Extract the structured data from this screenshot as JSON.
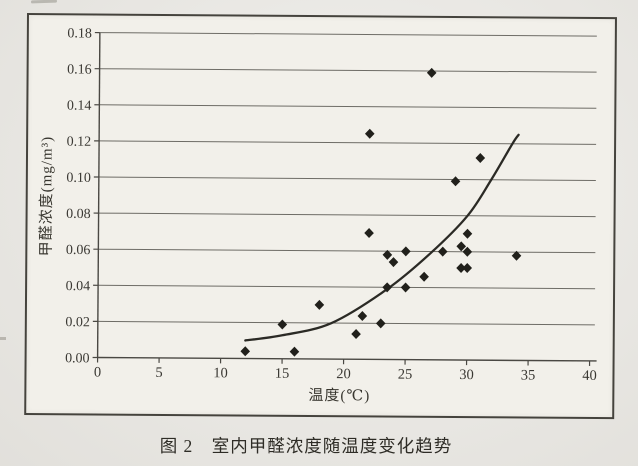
{
  "figure": {
    "caption": "图 2　室内甲醛浓度随温度变化趋势"
  },
  "chart_data": {
    "type": "scatter",
    "title": "",
    "xlabel": "温度(℃)",
    "ylabel": "甲醛浓度(mg/m³)",
    "xlim": [
      0,
      40
    ],
    "ylim": [
      0,
      0.18
    ],
    "x_ticks": [
      0,
      5,
      10,
      15,
      20,
      25,
      30,
      35,
      40
    ],
    "y_ticks": [
      {
        "v": 0.0,
        "label": "0.00"
      },
      {
        "v": 0.02,
        "label": "0.02"
      },
      {
        "v": 0.04,
        "label": "0.04"
      },
      {
        "v": 0.06,
        "label": "0.06"
      },
      {
        "v": 0.08,
        "label": "0.08"
      },
      {
        "v": 0.1,
        "label": "0.10"
      },
      {
        "v": 0.12,
        "label": "0.12"
      },
      {
        "v": 0.14,
        "label": "0.14"
      },
      {
        "v": 0.16,
        "label": "0.16"
      },
      {
        "v": 0.18,
        "label": "0.18"
      }
    ],
    "grid": "horizontal-gridlines",
    "legend": "none",
    "marker": "filled-diamond",
    "marker_color": "#21201b",
    "line_color": "#2b2a25",
    "points": [
      [
        12,
        0.004
      ],
      [
        15,
        0.019
      ],
      [
        16,
        0.004
      ],
      [
        18,
        0.03
      ],
      [
        21,
        0.014
      ],
      [
        21.5,
        0.024
      ],
      [
        22,
        0.07
      ],
      [
        22,
        0.125
      ],
      [
        23,
        0.02
      ],
      [
        23.5,
        0.04
      ],
      [
        23.5,
        0.058
      ],
      [
        24,
        0.054
      ],
      [
        25,
        0.04
      ],
      [
        25,
        0.06
      ],
      [
        26.5,
        0.046
      ],
      [
        27,
        0.159
      ],
      [
        28,
        0.06
      ],
      [
        29,
        0.099
      ],
      [
        29.5,
        0.051
      ],
      [
        29.5,
        0.063
      ],
      [
        30,
        0.051
      ],
      [
        30,
        0.06
      ],
      [
        30,
        0.07
      ],
      [
        31,
        0.112
      ],
      [
        34,
        0.058
      ]
    ],
    "trend_curve": [
      [
        12,
        0.01
      ],
      [
        15,
        0.013
      ],
      [
        19,
        0.02
      ],
      [
        23.5,
        0.039
      ],
      [
        27,
        0.059
      ],
      [
        30,
        0.08
      ],
      [
        31.9,
        0.1
      ],
      [
        33.6,
        0.12
      ],
      [
        34.1,
        0.125
      ]
    ]
  }
}
